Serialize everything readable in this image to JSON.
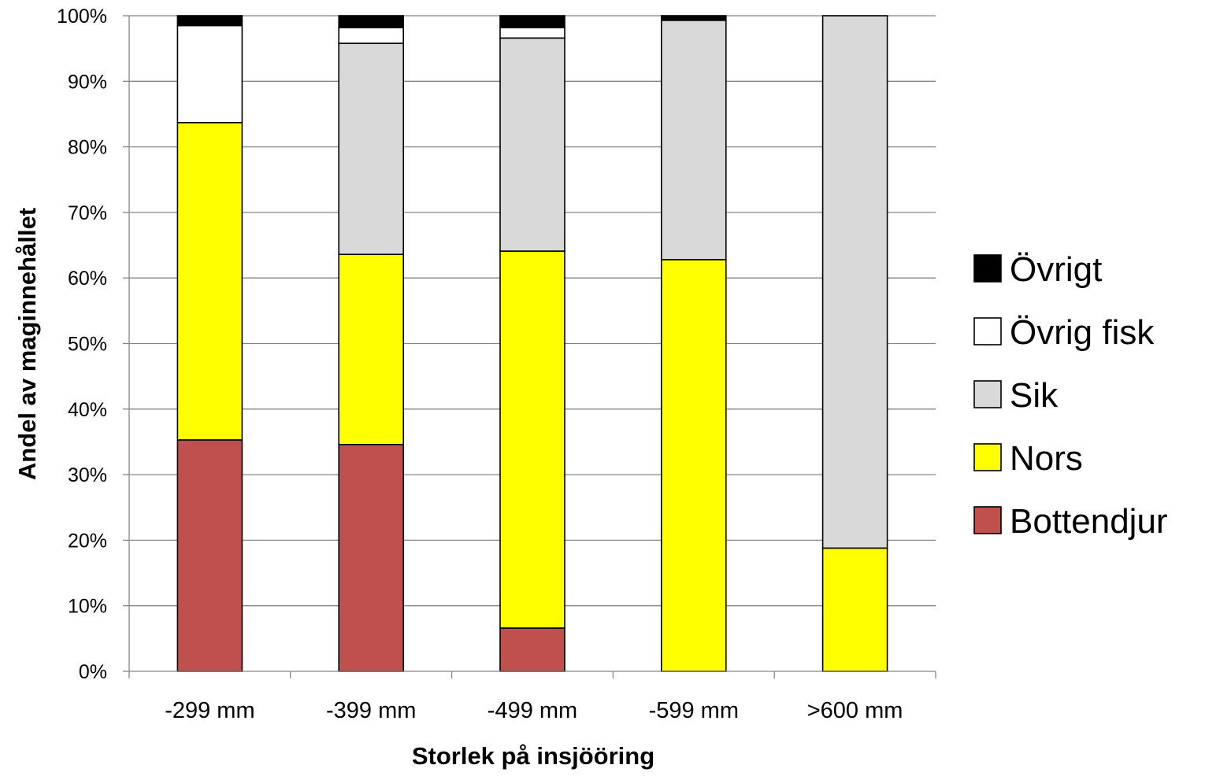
{
  "chart_data": {
    "type": "bar",
    "stacked": true,
    "normalized": true,
    "xlabel": "Storlek på insjööring",
    "ylabel": "Andel av maginnehållet",
    "ylim": [
      0,
      100
    ],
    "yticks": [
      "0%",
      "10%",
      "20%",
      "30%",
      "40%",
      "50%",
      "60%",
      "70%",
      "80%",
      "90%",
      "100%"
    ],
    "grid": true,
    "legend_position": "right",
    "categories": [
      "-299 mm",
      "-399 mm",
      "-499 mm",
      "-599 mm",
      ">600 mm"
    ],
    "series": [
      {
        "name": "Bottendjur",
        "color": "#c0504d",
        "values": [
          35.3,
          34.6,
          6.6,
          0,
          0
        ]
      },
      {
        "name": "Nors",
        "color": "#ffff00",
        "values": [
          48.4,
          29.0,
          57.5,
          62.8,
          18.8
        ]
      },
      {
        "name": "Sik",
        "color": "#d9d9d9",
        "values": [
          0,
          32.2,
          32.5,
          36.5,
          81.2
        ]
      },
      {
        "name": "Övrig fisk",
        "color": "#ffffff",
        "values": [
          14.8,
          2.4,
          1.6,
          0,
          0
        ]
      },
      {
        "name": "Övrigt",
        "color": "#000000",
        "values": [
          1.5,
          1.8,
          1.8,
          0.7,
          0
        ]
      }
    ]
  }
}
